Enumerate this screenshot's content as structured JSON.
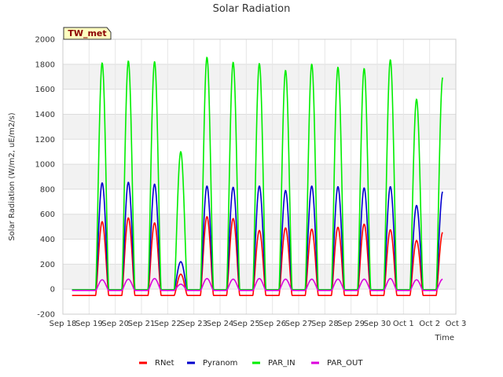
{
  "chart_data": {
    "type": "line",
    "title": "Solar Radiation",
    "xlabel": "Time",
    "ylabel": "Solar Radiation (W/m2, uE/m2/s)",
    "station_label": "TW_met",
    "ylim": [
      -200,
      2000
    ],
    "yticks": [
      -200,
      0,
      200,
      400,
      600,
      800,
      1000,
      1200,
      1400,
      1600,
      1800,
      2000
    ],
    "xlim": [
      0,
      15
    ],
    "xticks": [
      0,
      1,
      2,
      3,
      4,
      5,
      6,
      7,
      8,
      9,
      10,
      11,
      12,
      13,
      14,
      15
    ],
    "xtick_labels": [
      "Sep 18",
      "Sep 19",
      "Sep 20",
      "Sep 21",
      "Sep 22",
      "Sep 23",
      "Sep 24",
      "Sep 25",
      "Sep 26",
      "Sep 27",
      "Sep 28",
      "Sep 29",
      "Sep 30",
      "Oct 1",
      "Oct 2",
      "Oct 3"
    ],
    "grid": true,
    "legend_position": "bottom",
    "x_range_data": [
      0.35,
      14.5
    ],
    "series": [
      {
        "name": "RNet",
        "color": "#ff0000",
        "night_value": -50,
        "daily_peaks": [
          540,
          570,
          530,
          120,
          580,
          565,
          470,
          490,
          480,
          495,
          520,
          475,
          390,
          455
        ]
      },
      {
        "name": "Pyranom",
        "color": "#0000cc",
        "night_value": -5,
        "daily_peaks": [
          850,
          855,
          840,
          220,
          825,
          815,
          825,
          790,
          825,
          820,
          810,
          820,
          670,
          780
        ]
      },
      {
        "name": "PAR_IN",
        "color": "#00ee00",
        "night_value": -5,
        "daily_peaks": [
          1810,
          1825,
          1820,
          1100,
          1855,
          1815,
          1805,
          1750,
          1800,
          1775,
          1765,
          1835,
          1520,
          1695
        ]
      },
      {
        "name": "PAR_OUT",
        "color": "#dd00dd",
        "night_value": -10,
        "daily_peaks": [
          75,
          80,
          85,
          40,
          85,
          80,
          85,
          80,
          80,
          80,
          80,
          85,
          75,
          80
        ]
      }
    ]
  }
}
